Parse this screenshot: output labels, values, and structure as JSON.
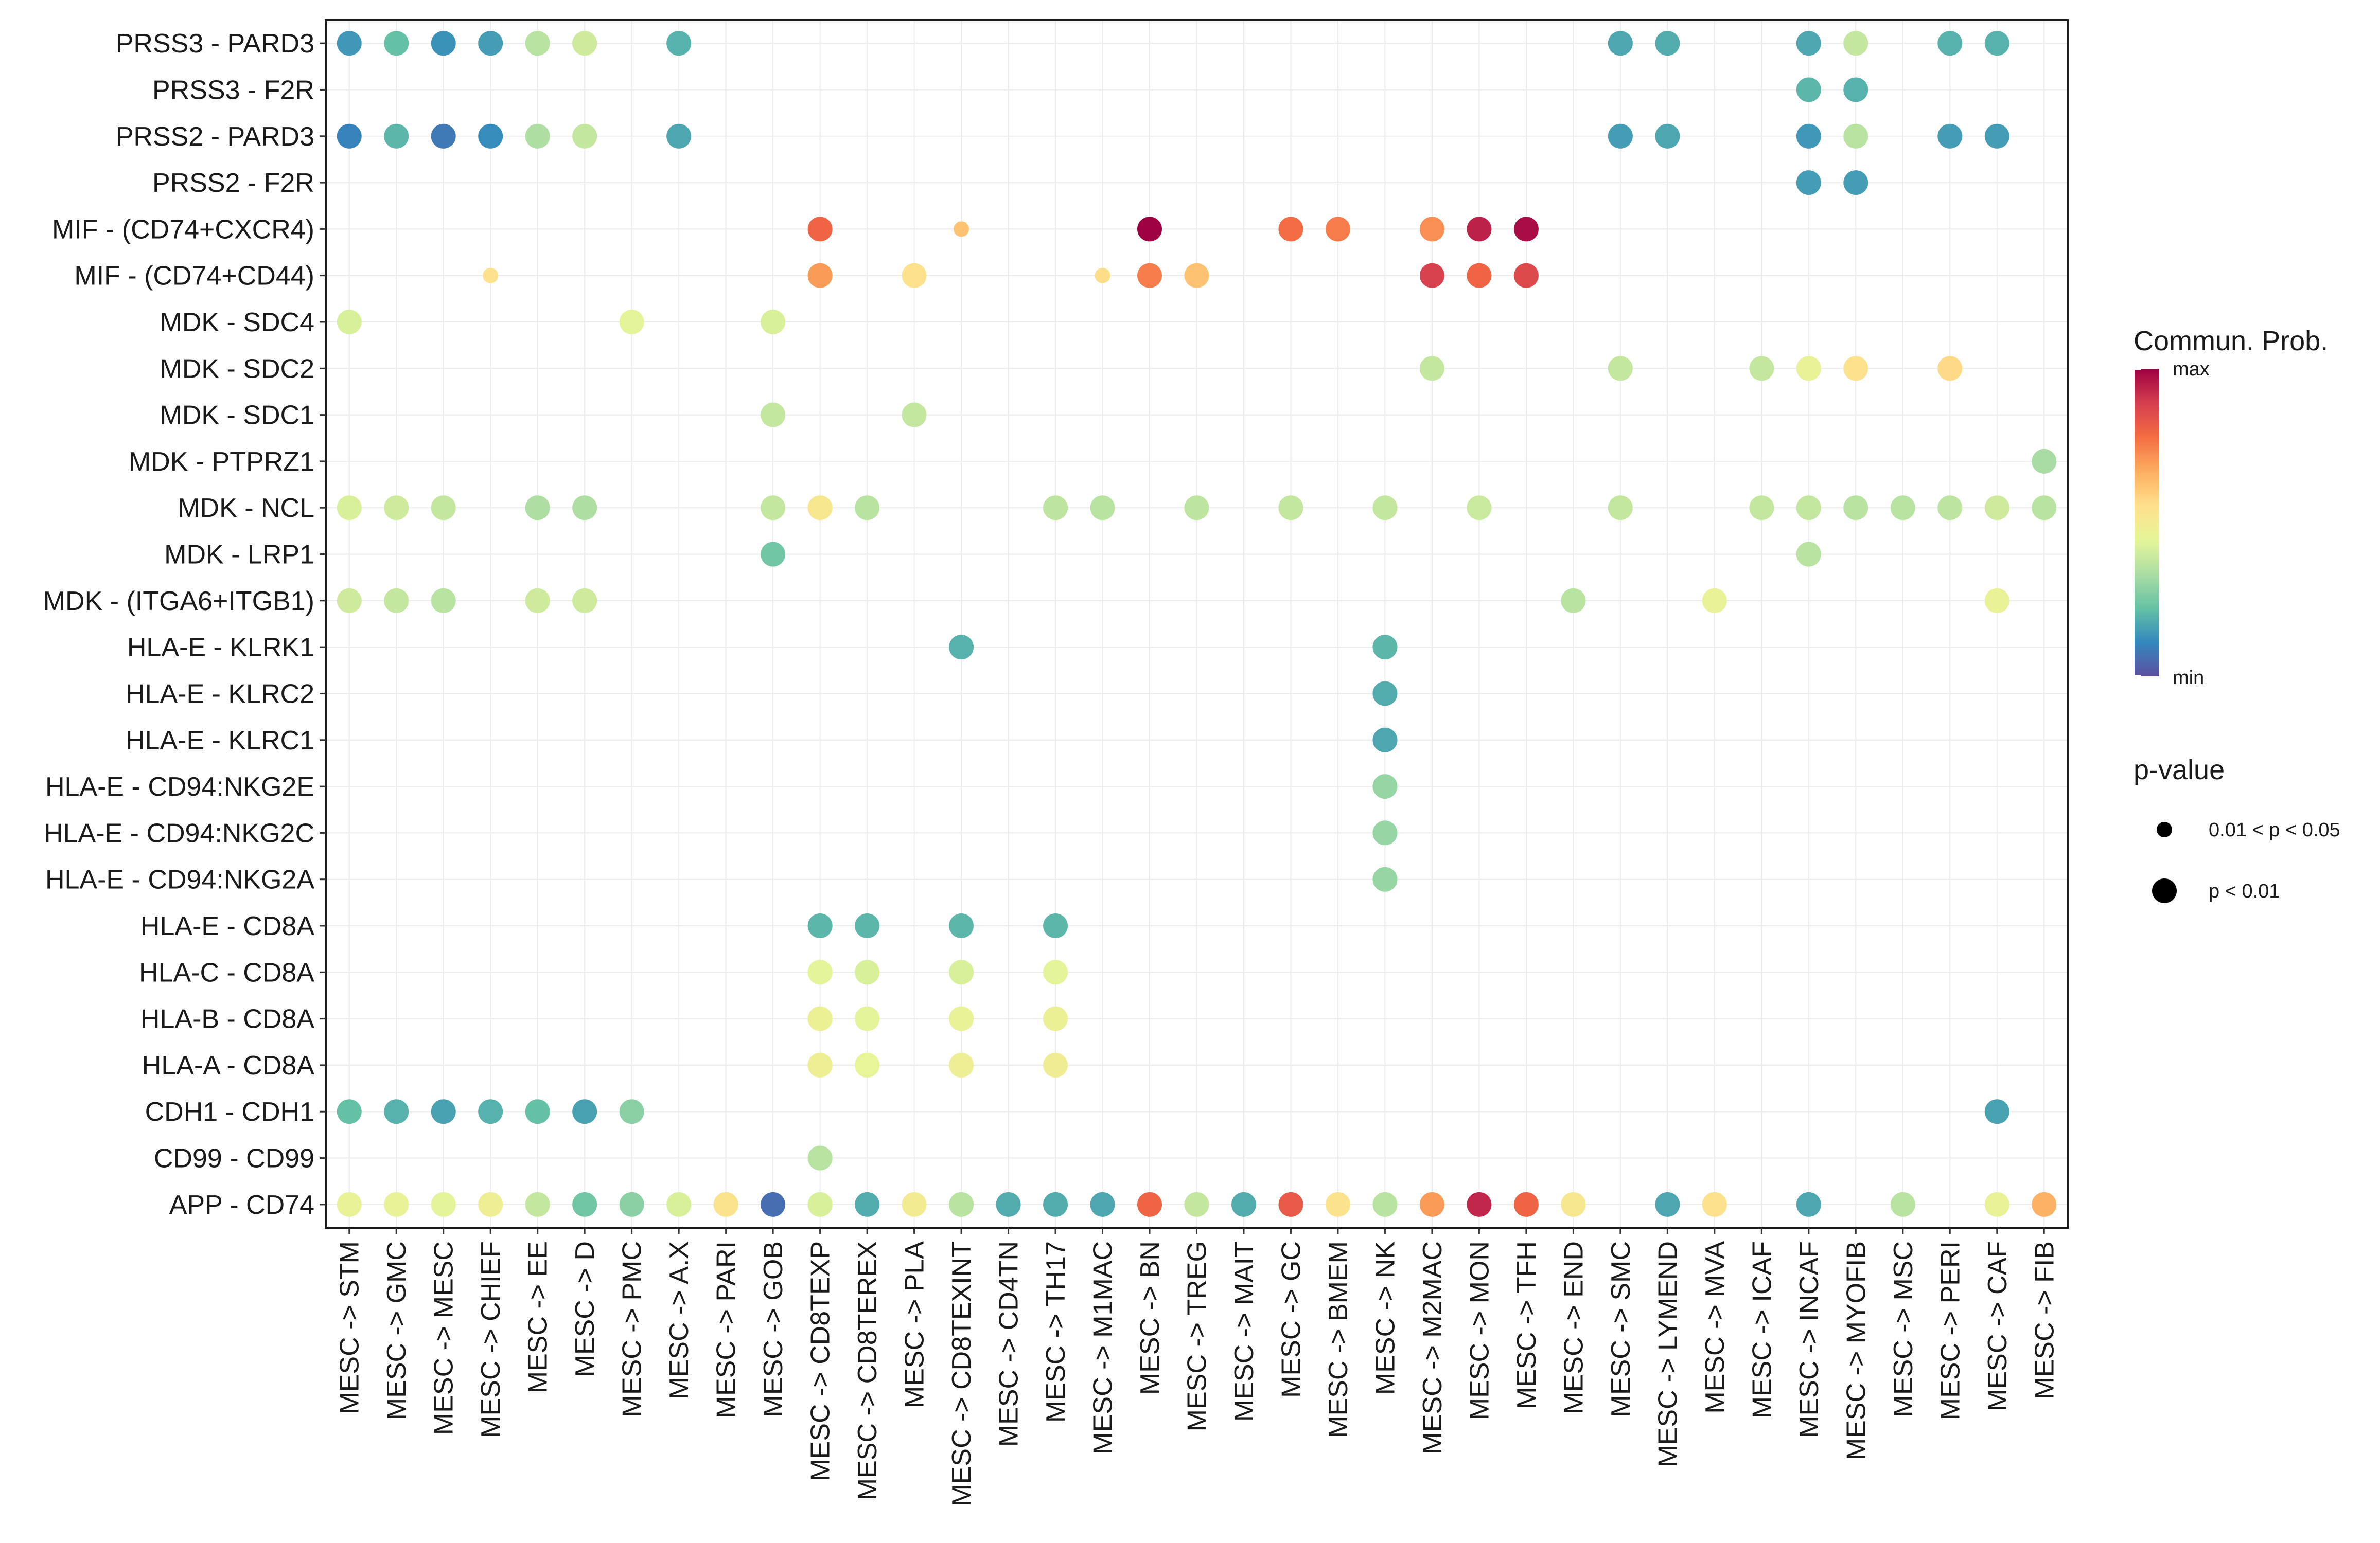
{
  "chart_data": {
    "type": "dotplot",
    "legend": {
      "color_title": "Commun. Prob.",
      "color_max_label": "max",
      "color_min_label": "min",
      "size_title": "p-value",
      "size_entries": [
        {
          "label": "0.01 < p < 0.05",
          "size_class": "small"
        },
        {
          "label": "p < 0.01",
          "size_class": "large"
        }
      ],
      "placement": "right"
    },
    "palette": [
      "#5e4fa2",
      "#3288bd",
      "#66c2a5",
      "#abdda4",
      "#e6f598",
      "#fee08b",
      "#fdae61",
      "#f46d43",
      "#d53e4f",
      "#9e0142"
    ],
    "rows": [
      "PRSS3 - PARD3",
      "PRSS3 - F2R",
      "PRSS2 - PARD3",
      "PRSS2 - F2R",
      "MIF - (CD74+CXCR4)",
      "MIF - (CD74+CD44)",
      "MDK - SDC4",
      "MDK - SDC2",
      "MDK - SDC1",
      "MDK - PTPRZ1",
      "MDK - NCL",
      "MDK - LRP1",
      "MDK - (ITGA6+ITGB1)",
      "HLA-E - KLRK1",
      "HLA-E - KLRC2",
      "HLA-E - KLRC1",
      "HLA-E - CD94:NKG2E",
      "HLA-E - CD94:NKG2C",
      "HLA-E - CD94:NKG2A",
      "HLA-E - CD8A",
      "HLA-C - CD8A",
      "HLA-B - CD8A",
      "HLA-A - CD8A",
      "CDH1 - CDH1",
      "CD99 - CD99",
      "APP - CD74"
    ],
    "columns": [
      "MESC -> STM",
      "MESC -> GMC",
      "MESC -> MESC",
      "MESC -> CHIEF",
      "MESC -> EE",
      "MESC -> D",
      "MESC -> PMC",
      "MESC -> A.X",
      "MESC -> PARI",
      "MESC -> GOB",
      "MESC -> CD8TEXP",
      "MESC -> CD8TEREX",
      "MESC -> PLA",
      "MESC -> CD8TEXINT",
      "MESC -> CD4TN",
      "MESC -> TH17",
      "MESC -> M1MAC",
      "MESC -> BN",
      "MESC -> TREG",
      "MESC -> MAIT",
      "MESC -> GC",
      "MESC -> BMEM",
      "MESC -> NK",
      "MESC -> M2MAC",
      "MESC -> MON",
      "MESC -> TFH",
      "MESC -> END",
      "MESC -> SMC",
      "MESC -> LYMEND",
      "MESC -> MVA",
      "MESC -> ICAF",
      "MESC -> INCAF",
      "MESC -> MYOFIB",
      "MESC -> MSC",
      "MESC -> PERI",
      "MESC -> CAF",
      "MESC -> FIB"
    ],
    "points_note": "each point: [row_index, column_index, relative_commun_prob (0=min,1=max), p_value_class (1: p<0.01, 0: 0.01<p<0.05)]",
    "points": [
      [
        0,
        0,
        0.14,
        1
      ],
      [
        0,
        1,
        0.22,
        1
      ],
      [
        0,
        2,
        0.13,
        1
      ],
      [
        0,
        3,
        0.15,
        1
      ],
      [
        0,
        4,
        0.36,
        1
      ],
      [
        0,
        5,
        0.4,
        1
      ],
      [
        0,
        7,
        0.19,
        1
      ],
      [
        0,
        27,
        0.17,
        1
      ],
      [
        0,
        28,
        0.18,
        1
      ],
      [
        0,
        31,
        0.17,
        1
      ],
      [
        0,
        32,
        0.38,
        1
      ],
      [
        0,
        34,
        0.19,
        1
      ],
      [
        0,
        35,
        0.19,
        1
      ],
      [
        1,
        31,
        0.2,
        1
      ],
      [
        1,
        32,
        0.19,
        1
      ],
      [
        2,
        0,
        0.1,
        1
      ],
      [
        2,
        1,
        0.2,
        1
      ],
      [
        2,
        2,
        0.08,
        1
      ],
      [
        2,
        3,
        0.12,
        1
      ],
      [
        2,
        4,
        0.34,
        1
      ],
      [
        2,
        5,
        0.38,
        1
      ],
      [
        2,
        7,
        0.17,
        1
      ],
      [
        2,
        27,
        0.15,
        1
      ],
      [
        2,
        28,
        0.17,
        1
      ],
      [
        2,
        31,
        0.14,
        1
      ],
      [
        2,
        32,
        0.36,
        1
      ],
      [
        2,
        34,
        0.15,
        1
      ],
      [
        2,
        35,
        0.15,
        1
      ],
      [
        3,
        31,
        0.15,
        1
      ],
      [
        3,
        32,
        0.15,
        1
      ],
      [
        4,
        10,
        0.8,
        1
      ],
      [
        4,
        13,
        0.62,
        0
      ],
      [
        4,
        17,
        1.0,
        1
      ],
      [
        4,
        20,
        0.78,
        1
      ],
      [
        4,
        21,
        0.75,
        1
      ],
      [
        4,
        23,
        0.72,
        1
      ],
      [
        4,
        24,
        0.94,
        1
      ],
      [
        4,
        25,
        0.98,
        1
      ],
      [
        5,
        3,
        0.55,
        0
      ],
      [
        5,
        10,
        0.7,
        1
      ],
      [
        5,
        12,
        0.55,
        1
      ],
      [
        5,
        16,
        0.56,
        0
      ],
      [
        5,
        17,
        0.75,
        1
      ],
      [
        5,
        18,
        0.62,
        1
      ],
      [
        5,
        23,
        0.88,
        1
      ],
      [
        5,
        24,
        0.8,
        1
      ],
      [
        5,
        25,
        0.86,
        1
      ],
      [
        6,
        0,
        0.42,
        1
      ],
      [
        6,
        6,
        0.44,
        1
      ],
      [
        6,
        9,
        0.42,
        1
      ],
      [
        7,
        23,
        0.38,
        1
      ],
      [
        7,
        27,
        0.38,
        1
      ],
      [
        7,
        30,
        0.38,
        1
      ],
      [
        7,
        31,
        0.46,
        1
      ],
      [
        7,
        32,
        0.55,
        1
      ],
      [
        7,
        34,
        0.57,
        1
      ],
      [
        8,
        9,
        0.38,
        1
      ],
      [
        8,
        12,
        0.38,
        1
      ],
      [
        9,
        36,
        0.33,
        1
      ],
      [
        10,
        0,
        0.42,
        1
      ],
      [
        10,
        1,
        0.4,
        1
      ],
      [
        10,
        2,
        0.38,
        1
      ],
      [
        10,
        4,
        0.34,
        1
      ],
      [
        10,
        5,
        0.34,
        1
      ],
      [
        10,
        9,
        0.38,
        1
      ],
      [
        10,
        10,
        0.52,
        1
      ],
      [
        10,
        11,
        0.36,
        1
      ],
      [
        10,
        15,
        0.37,
        1
      ],
      [
        10,
        16,
        0.36,
        1
      ],
      [
        10,
        18,
        0.37,
        1
      ],
      [
        10,
        20,
        0.38,
        1
      ],
      [
        10,
        22,
        0.38,
        1
      ],
      [
        10,
        24,
        0.39,
        1
      ],
      [
        10,
        27,
        0.38,
        1
      ],
      [
        10,
        30,
        0.38,
        1
      ],
      [
        10,
        31,
        0.38,
        1
      ],
      [
        10,
        32,
        0.36,
        1
      ],
      [
        10,
        33,
        0.36,
        1
      ],
      [
        10,
        34,
        0.37,
        1
      ],
      [
        10,
        35,
        0.4,
        1
      ],
      [
        10,
        36,
        0.36,
        1
      ],
      [
        11,
        9,
        0.24,
        1
      ],
      [
        11,
        31,
        0.36,
        1
      ],
      [
        12,
        0,
        0.4,
        1
      ],
      [
        12,
        1,
        0.38,
        1
      ],
      [
        12,
        2,
        0.36,
        1
      ],
      [
        12,
        4,
        0.4,
        1
      ],
      [
        12,
        5,
        0.4,
        1
      ],
      [
        12,
        26,
        0.36,
        1
      ],
      [
        12,
        29,
        0.46,
        1
      ],
      [
        12,
        35,
        0.46,
        1
      ],
      [
        13,
        13,
        0.19,
        1
      ],
      [
        13,
        22,
        0.2,
        1
      ],
      [
        14,
        22,
        0.18,
        1
      ],
      [
        15,
        22,
        0.17,
        1
      ],
      [
        16,
        22,
        0.3,
        1
      ],
      [
        17,
        22,
        0.3,
        1
      ],
      [
        18,
        22,
        0.3,
        1
      ],
      [
        19,
        10,
        0.2,
        1
      ],
      [
        19,
        11,
        0.2,
        1
      ],
      [
        19,
        13,
        0.2,
        1
      ],
      [
        19,
        15,
        0.2,
        1
      ],
      [
        20,
        10,
        0.44,
        1
      ],
      [
        20,
        11,
        0.42,
        1
      ],
      [
        20,
        13,
        0.42,
        1
      ],
      [
        20,
        15,
        0.44,
        1
      ],
      [
        21,
        10,
        0.47,
        1
      ],
      [
        21,
        11,
        0.44,
        1
      ],
      [
        21,
        13,
        0.46,
        1
      ],
      [
        21,
        15,
        0.47,
        1
      ],
      [
        22,
        10,
        0.48,
        1
      ],
      [
        22,
        11,
        0.45,
        1
      ],
      [
        22,
        13,
        0.48,
        1
      ],
      [
        22,
        15,
        0.49,
        1
      ],
      [
        23,
        0,
        0.22,
        1
      ],
      [
        23,
        1,
        0.19,
        1
      ],
      [
        23,
        2,
        0.16,
        1
      ],
      [
        23,
        3,
        0.19,
        1
      ],
      [
        23,
        4,
        0.22,
        1
      ],
      [
        23,
        5,
        0.16,
        1
      ],
      [
        23,
        6,
        0.28,
        1
      ],
      [
        23,
        35,
        0.16,
        1
      ],
      [
        24,
        10,
        0.36,
        1
      ],
      [
        25,
        0,
        0.46,
        1
      ],
      [
        25,
        1,
        0.46,
        1
      ],
      [
        25,
        2,
        0.44,
        1
      ],
      [
        25,
        3,
        0.48,
        1
      ],
      [
        25,
        4,
        0.38,
        1
      ],
      [
        25,
        5,
        0.24,
        1
      ],
      [
        25,
        6,
        0.28,
        1
      ],
      [
        25,
        7,
        0.42,
        1
      ],
      [
        25,
        8,
        0.54,
        1
      ],
      [
        25,
        9,
        0.06,
        1
      ],
      [
        25,
        10,
        0.42,
        1
      ],
      [
        25,
        11,
        0.18,
        1
      ],
      [
        25,
        12,
        0.5,
        1
      ],
      [
        25,
        13,
        0.36,
        1
      ],
      [
        25,
        14,
        0.18,
        1
      ],
      [
        25,
        15,
        0.18,
        1
      ],
      [
        25,
        16,
        0.17,
        1
      ],
      [
        25,
        17,
        0.8,
        1
      ],
      [
        25,
        18,
        0.38,
        1
      ],
      [
        25,
        19,
        0.18,
        1
      ],
      [
        25,
        20,
        0.82,
        1
      ],
      [
        25,
        21,
        0.54,
        1
      ],
      [
        25,
        22,
        0.36,
        1
      ],
      [
        25,
        23,
        0.7,
        1
      ],
      [
        25,
        24,
        0.93,
        1
      ],
      [
        25,
        25,
        0.8,
        1
      ],
      [
        25,
        26,
        0.52,
        1
      ],
      [
        25,
        28,
        0.17,
        1
      ],
      [
        25,
        29,
        0.55,
        1
      ],
      [
        25,
        31,
        0.17,
        1
      ],
      [
        25,
        33,
        0.36,
        1
      ],
      [
        25,
        35,
        0.46,
        1
      ],
      [
        25,
        36,
        0.66,
        1
      ]
    ]
  }
}
